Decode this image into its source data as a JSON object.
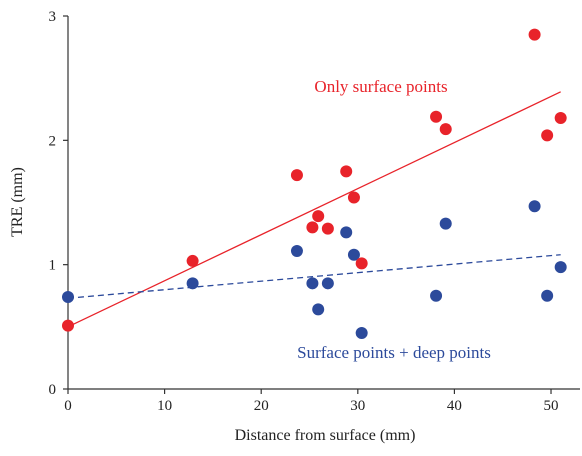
{
  "chart_data": {
    "type": "scatter",
    "xlabel": "Distance from surface (mm)",
    "ylabel": "TRE (mm)",
    "xlim": [
      0,
      53
    ],
    "ylim": [
      0,
      3
    ],
    "xticks": [
      0,
      10,
      20,
      30,
      40,
      50
    ],
    "yticks": [
      0,
      1,
      2,
      3
    ],
    "grid": false,
    "series": [
      {
        "name": "Only surface points",
        "color": "#e8232a",
        "line_style": "solid",
        "trend": {
          "x": [
            0,
            51
          ],
          "y": [
            0.5,
            2.39
          ]
        },
        "points": [
          [
            0,
            0.51
          ],
          [
            12.9,
            1.03
          ],
          [
            23.7,
            1.72
          ],
          [
            25.3,
            1.3
          ],
          [
            25.9,
            1.39
          ],
          [
            26.9,
            1.29
          ],
          [
            28.8,
            1.75
          ],
          [
            29.6,
            1.54
          ],
          [
            30.4,
            1.01
          ],
          [
            38.1,
            2.19
          ],
          [
            39.1,
            2.09
          ],
          [
            48.3,
            2.85
          ],
          [
            49.6,
            2.04
          ],
          [
            51.0,
            2.18
          ]
        ]
      },
      {
        "name": "Surface points + deep points",
        "color": "#2c4a9b",
        "line_style": "dashed",
        "trend": {
          "x": [
            0,
            51
          ],
          "y": [
            0.73,
            1.08
          ]
        },
        "points": [
          [
            0,
            0.74
          ],
          [
            12.9,
            0.85
          ],
          [
            23.7,
            1.11
          ],
          [
            25.3,
            0.85
          ],
          [
            25.9,
            0.64
          ],
          [
            26.9,
            0.85
          ],
          [
            28.8,
            1.26
          ],
          [
            29.6,
            1.08
          ],
          [
            30.4,
            0.45
          ],
          [
            38.1,
            0.75
          ],
          [
            39.1,
            1.33
          ],
          [
            48.3,
            1.47
          ],
          [
            49.6,
            0.75
          ],
          [
            51.0,
            0.98
          ]
        ]
      }
    ]
  }
}
